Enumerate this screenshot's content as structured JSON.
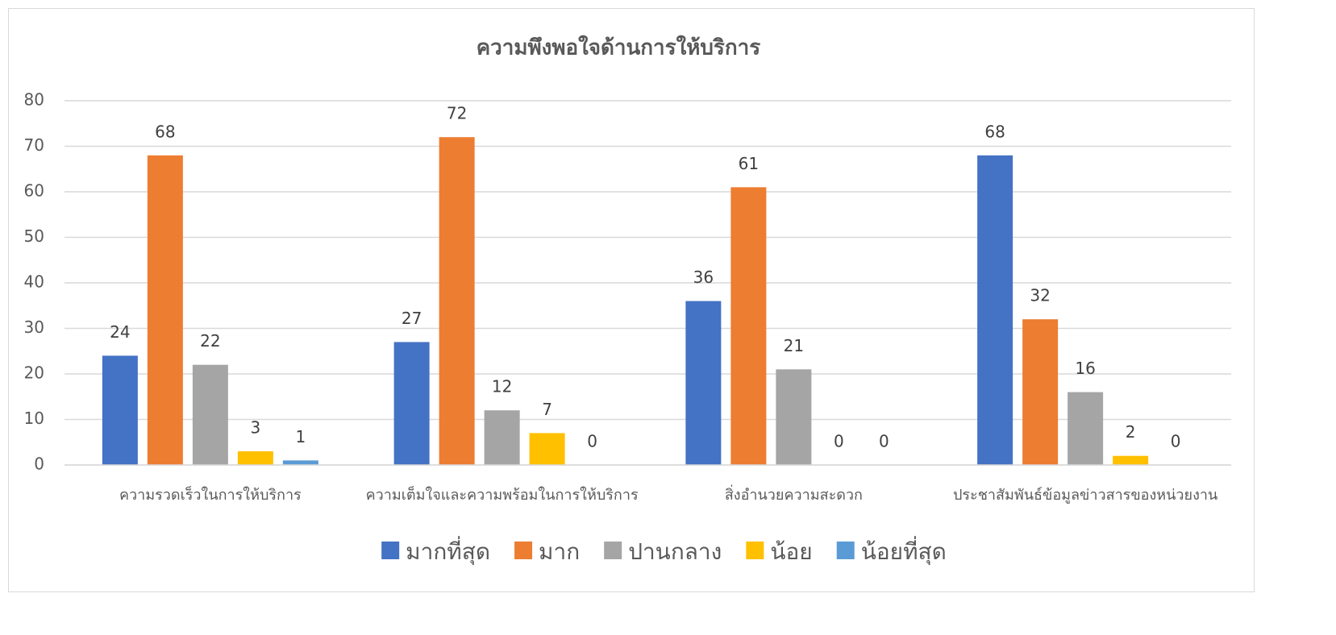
{
  "chart_data": {
    "type": "bar",
    "title": "ความพึงพอใจด้านการให้บริการ",
    "categories": [
      "ความรวดเร็วในการให้บริการ",
      "ความเต็มใจและความพร้อมในการให้บริการ",
      "สิ่งอำนวยความสะดวก",
      "ประชาสัมพันธ์ข้อมูลข่าวสารของหน่วยงาน"
    ],
    "series": [
      {
        "name": "มากที่สุด",
        "color": "#4472c4",
        "values": [
          24,
          27,
          36,
          68
        ]
      },
      {
        "name": "มาก",
        "color": "#ed7d31",
        "values": [
          68,
          72,
          61,
          32
        ]
      },
      {
        "name": "ปานกลาง",
        "color": "#a5a5a5",
        "values": [
          22,
          12,
          21,
          16
        ]
      },
      {
        "name": "น้อย",
        "color": "#ffc000",
        "values": [
          3,
          7,
          0,
          2
        ]
      },
      {
        "name": "น้อยที่สุด",
        "color": "#5b9bd5",
        "values": [
          1,
          0,
          0,
          0
        ]
      }
    ],
    "ylim": [
      0,
      80
    ],
    "yticks": [
      0,
      10,
      20,
      30,
      40,
      50,
      60,
      70,
      80
    ],
    "grid": true,
    "legend": "bottom"
  }
}
